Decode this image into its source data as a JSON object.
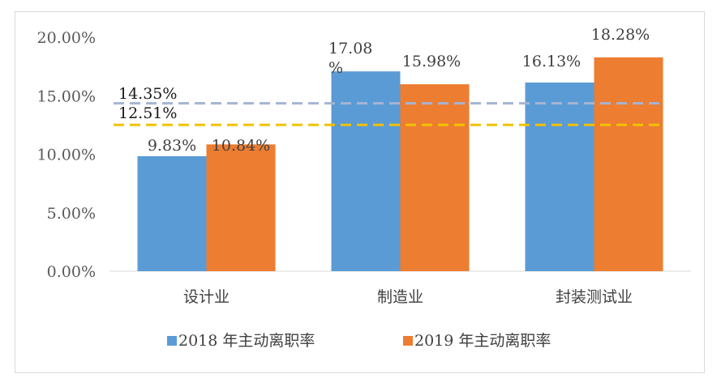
{
  "chart_data": {
    "type": "bar",
    "categories": [
      "设计业",
      "制造业",
      "封装测试业"
    ],
    "series": [
      {
        "name": "2018 年主动离职率",
        "values": [
          9.83,
          17.08,
          16.13
        ],
        "labels": [
          "9.83%",
          "17.08%",
          "16.13%"
        ],
        "color": "#5b9bd5"
      },
      {
        "name": "2019 年主动离职率",
        "values": [
          10.84,
          15.98,
          18.28
        ],
        "labels": [
          "10.84%",
          "15.98%",
          "18.28%"
        ],
        "color": "#ed7d31"
      }
    ],
    "reference_lines": [
      {
        "value": 14.35,
        "label": "14.35%",
        "color": "#a5b4d4"
      },
      {
        "value": 12.51,
        "label": "12.51%",
        "color": "#f2c200"
      }
    ],
    "yticks": [
      "0.00%",
      "5.00%",
      "10.00%",
      "15.00%",
      "20.00%"
    ],
    "ylim": [
      0,
      20
    ],
    "legend_position": "bottom",
    "title": "",
    "xlabel": "",
    "ylabel": ""
  }
}
